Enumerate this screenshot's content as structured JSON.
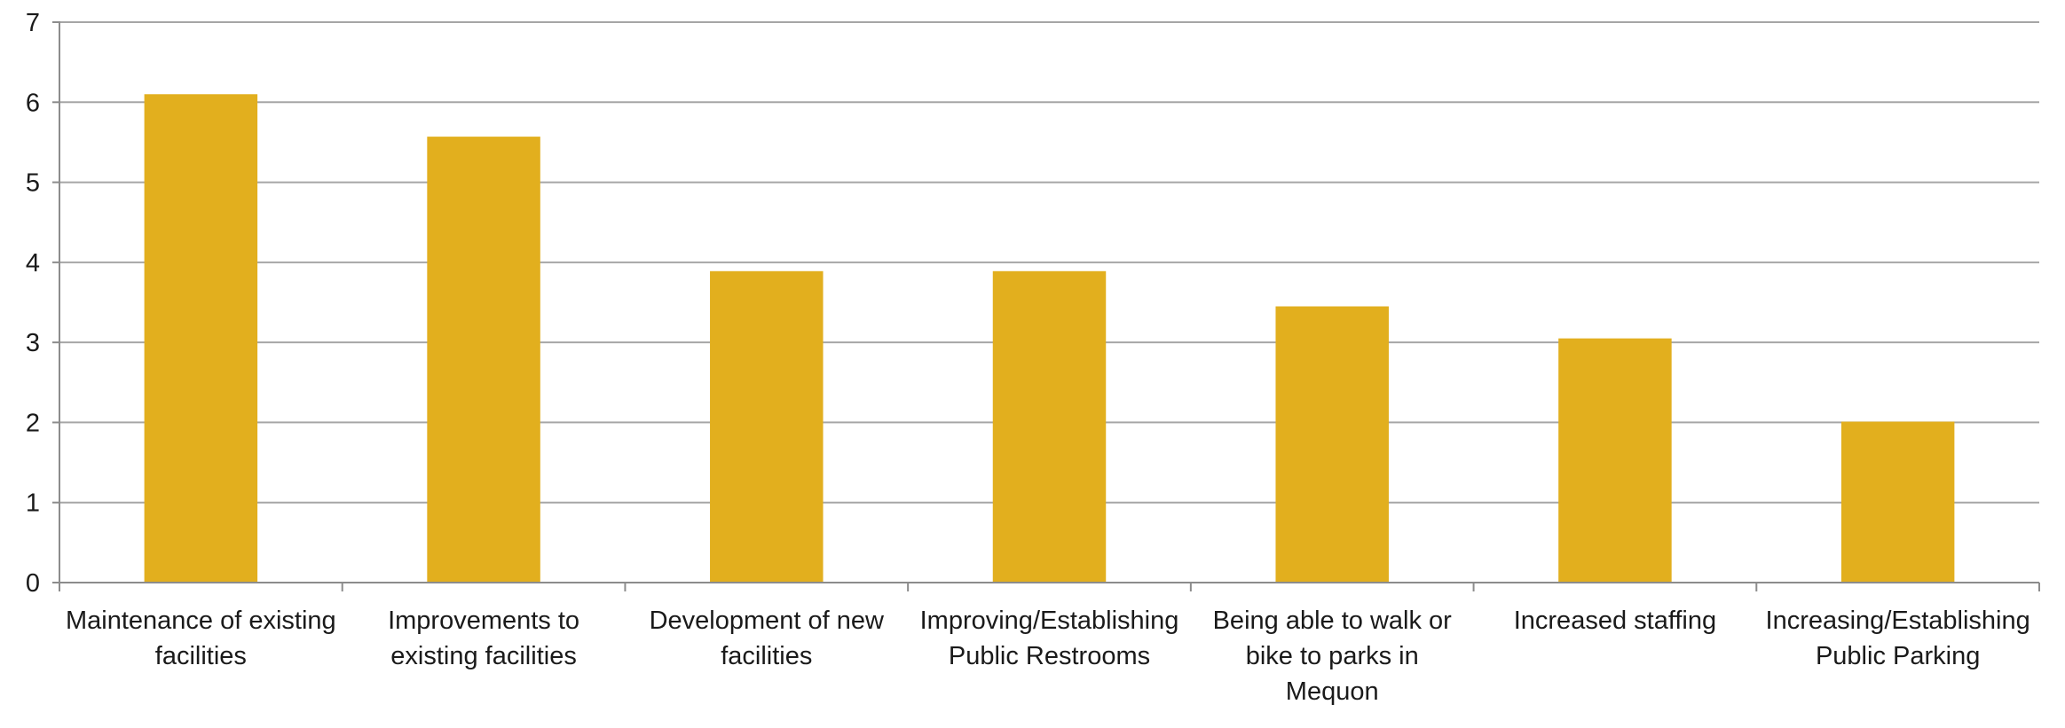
{
  "chart_data": {
    "type": "bar",
    "categories": [
      "Maintenance of existing facilities",
      "Improvements to existing facilities",
      "Development of new facilities",
      "Improving/Establishing Public Restrooms",
      "Being able to walk or bike to parks in Mequon",
      "Increased staffing",
      "Increasing/Establishing Public Parking"
    ],
    "category_label_lines": [
      [
        "Maintenance of existing",
        "facilities"
      ],
      [
        "Improvements to",
        "existing facilities"
      ],
      [
        "Development of new",
        "facilities"
      ],
      [
        "Improving/Establishing",
        "Public Restrooms"
      ],
      [
        "Being able to walk or",
        "bike to parks in",
        "Mequon"
      ],
      [
        "Increased staffing"
      ],
      [
        "Increasing/Establishing",
        "Public Parking"
      ]
    ],
    "values": [
      6.1,
      5.57,
      3.89,
      3.89,
      3.45,
      3.05,
      2.01
    ],
    "yticks": [
      "0",
      "1",
      "2",
      "3",
      "4",
      "5",
      "6",
      "7"
    ],
    "ylim": [
      0,
      7
    ],
    "grid": true,
    "legend": "none",
    "title": "",
    "xlabel": "",
    "ylabel": "",
    "colors": {
      "bar": "#E2AF1E",
      "grid": "#a6a6a6",
      "axis": "#8c8c8c"
    }
  }
}
